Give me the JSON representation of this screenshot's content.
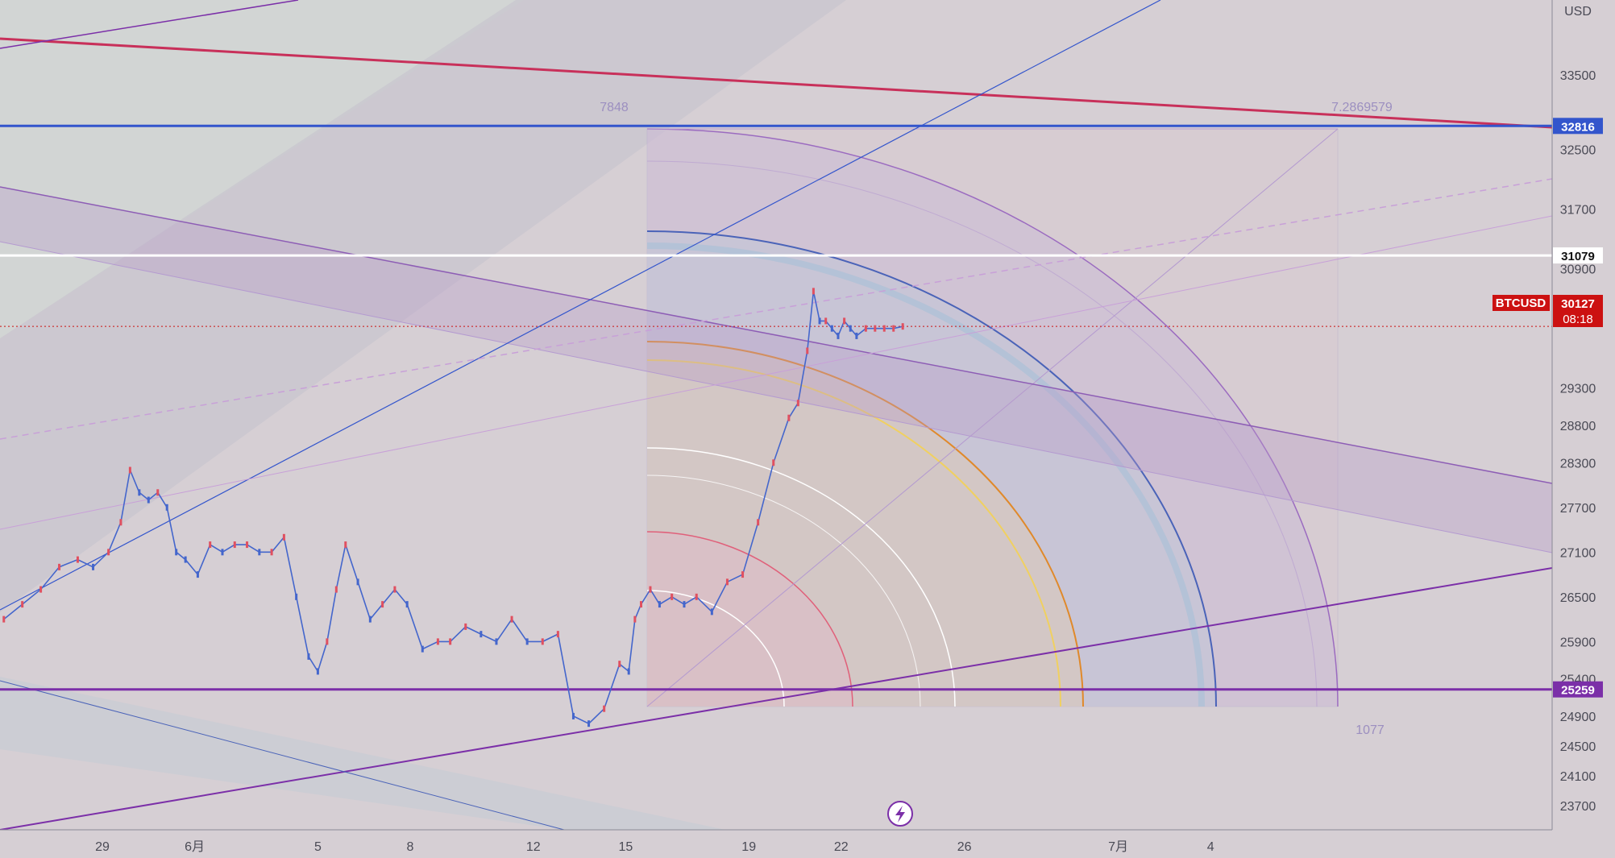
{
  "chart_data": {
    "type": "line",
    "title": "",
    "symbol": "BTCUSD",
    "currency": "USD",
    "xlabel": "",
    "ylabel": "",
    "ylim": [
      23400,
      34200
    ],
    "y_ticks": [
      33500,
      32500,
      31700,
      30900,
      29300,
      28800,
      28300,
      27700,
      27100,
      26500,
      25900,
      25400,
      24900,
      24500,
      24100,
      23700
    ],
    "x_ticks": [
      {
        "label": "29",
        "day": 0
      },
      {
        "label": "6月",
        "day": 3
      },
      {
        "label": "5",
        "day": 7
      },
      {
        "label": "8",
        "day": 10
      },
      {
        "label": "12",
        "day": 14
      },
      {
        "label": "15",
        "day": 17
      },
      {
        "label": "19",
        "day": 21
      },
      {
        "label": "22",
        "day": 24
      },
      {
        "label": "26",
        "day": 28
      },
      {
        "label": "7月",
        "day": 33
      },
      {
        "label": "4",
        "day": 36
      }
    ],
    "price_series": {
      "name": "BTCUSD",
      "days": [
        -3.2,
        -2.6,
        -2.0,
        -1.4,
        -0.8,
        -0.3,
        0.2,
        0.6,
        0.9,
        1.2,
        1.5,
        1.8,
        2.1,
        2.4,
        2.7,
        3.1,
        3.5,
        3.9,
        4.3,
        4.7,
        5.1,
        5.5,
        5.9,
        6.3,
        6.7,
        7.0,
        7.3,
        7.6,
        7.9,
        8.3,
        8.7,
        9.1,
        9.5,
        9.9,
        10.4,
        10.9,
        11.3,
        11.8,
        12.3,
        12.8,
        13.3,
        13.8,
        14.3,
        14.8,
        15.3,
        15.8,
        16.3,
        16.8,
        17.1,
        17.3,
        17.5,
        17.8,
        18.1,
        18.5,
        18.9,
        19.3,
        19.8,
        20.3,
        20.8,
        21.3,
        21.8,
        22.3,
        22.6,
        22.9,
        23.1,
        23.3,
        23.5,
        23.7,
        23.9,
        24.1,
        24.3,
        24.5,
        24.8,
        25.1,
        25.4,
        25.7,
        26.0
      ],
      "values": [
        26200,
        26400,
        26600,
        26900,
        27000,
        26900,
        27100,
        27500,
        28200,
        27900,
        27800,
        27900,
        27700,
        27100,
        27000,
        26800,
        27200,
        27100,
        27200,
        27200,
        27100,
        27100,
        27300,
        26500,
        25700,
        25500,
        25900,
        26600,
        27200,
        26700,
        26200,
        26400,
        26600,
        26400,
        25800,
        25900,
        25900,
        26100,
        26000,
        25900,
        26200,
        25900,
        25900,
        26000,
        24900,
        24800,
        25000,
        25600,
        25500,
        26200,
        26400,
        26600,
        26400,
        26500,
        26400,
        26500,
        26300,
        26700,
        26800,
        27500,
        28300,
        28900,
        29100,
        29800,
        30600,
        30200,
        30200,
        30100,
        30000,
        30200,
        30100,
        30000,
        30100,
        30100,
        30100,
        30100,
        30127
      ]
    },
    "horizontal_levels": [
      {
        "value": 32816,
        "color": "#3355cc",
        "label": "32816"
      },
      {
        "value": 31079,
        "color": "#ffffff",
        "label": "31079"
      },
      {
        "value": 25259,
        "color": "#7b2fa8",
        "label": "25259"
      }
    ],
    "last_price": {
      "symbol": "BTCUSD",
      "value": "30127",
      "countdown": "08:18",
      "color": "#cc1111"
    },
    "gann_box": {
      "top_left_label": "7848",
      "top_right_label": "7.2869579",
      "bottom_right_label": "1077"
    },
    "colors": {
      "background": "#d6cfd4",
      "up": "#e05060",
      "down": "#4466cc",
      "accent_red": "#c8305a",
      "accent_purple": "#7b2fa8",
      "accent_blue": "#3355cc"
    },
    "grid": false,
    "legend": "none"
  }
}
